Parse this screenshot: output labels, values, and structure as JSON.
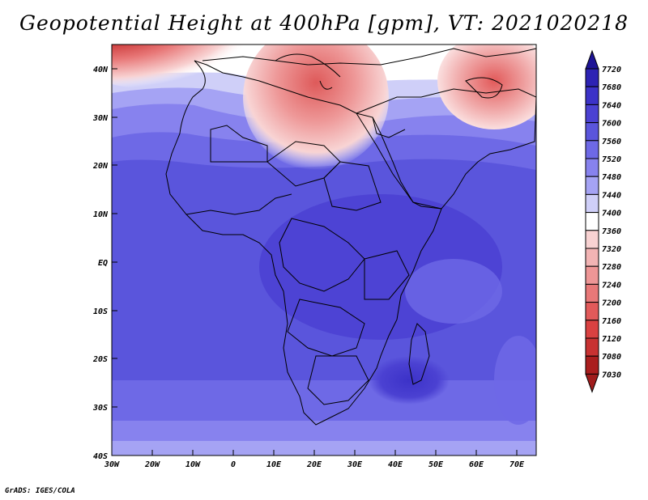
{
  "title": "Geopotential Height at 400hPa [gpm], VT: 2021020218",
  "credit": "GrADS: IGES/COLA",
  "map": {
    "lat_labels": [
      "40N",
      "30N",
      "20N",
      "10N",
      "EQ",
      "10S",
      "20S",
      "30S",
      "40S"
    ],
    "lon_labels": [
      "30W",
      "20W",
      "10W",
      "0",
      "10E",
      "20E",
      "30E",
      "40E",
      "50E",
      "60E",
      "70E"
    ]
  },
  "colorbar": {
    "levels": [
      "7720",
      "7680",
      "7640",
      "7600",
      "7560",
      "7520",
      "7480",
      "7440",
      "7400",
      "7360",
      "7320",
      "7280",
      "7240",
      "7200",
      "7160",
      "7120",
      "7080",
      "7030"
    ],
    "colors": [
      "#1e1496",
      "#2d23b4",
      "#3c32c8",
      "#4b41d2",
      "#5a55dc",
      "#6e69e6",
      "#8782ee",
      "#a5a3f4",
      "#cfcff8",
      "#ffffff",
      "#f8d2d2",
      "#f2b4b4",
      "#ee9696",
      "#e87878",
      "#e25a5a",
      "#da4141",
      "#c83232",
      "#aa1e1e",
      "#a01c1c"
    ]
  }
}
